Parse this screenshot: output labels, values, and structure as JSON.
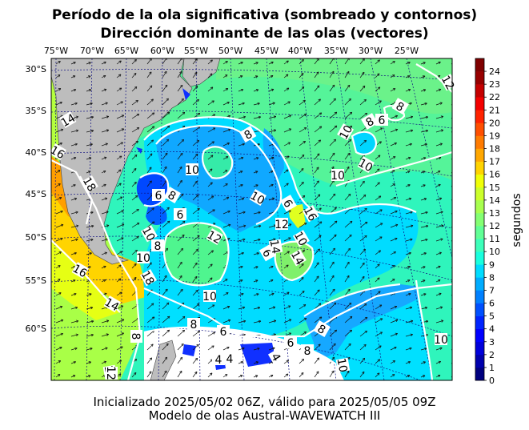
{
  "title_line1": "Período de la ola significativa (sombreado y contornos)",
  "title_line2": "Dirección dominante de las olas (vectores)",
  "footer_line1": "Inicializado 2025/05/02 06Z, válido para 2025/05/05 09Z",
  "footer_line2": "Modelo de olas Austral-WAVEWATCH III",
  "map": {
    "lon_labels": [
      "75°W",
      "70°W",
      "65°W",
      "60°W",
      "55°W",
      "50°W",
      "45°W",
      "40°W",
      "35°W",
      "30°W",
      "25°W"
    ],
    "lat_labels": [
      "30°S",
      "35°S",
      "40°S",
      "45°S",
      "50°S",
      "55°S",
      "60°S"
    ],
    "contour_labels": [
      "14",
      "16",
      "14",
      "18",
      "16",
      "14",
      "12",
      "6",
      "8",
      "10",
      "8",
      "6",
      "10",
      "18",
      "10",
      "8",
      "6",
      "12",
      "8",
      "10",
      "6",
      "12",
      "16",
      "14",
      "10",
      "14",
      "10",
      "10",
      "8",
      "6",
      "8",
      "10",
      "6",
      "4",
      "4",
      "4",
      "6",
      "8",
      "10",
      "8",
      "10",
      "8",
      "12",
      "10"
    ]
  },
  "colorbar": {
    "label": "segundos",
    "ticks": [
      "0",
      "1",
      "2",
      "3",
      "4",
      "5",
      "6",
      "7",
      "8",
      "9",
      "10",
      "11",
      "12",
      "13",
      "14",
      "15",
      "16",
      "17",
      "18",
      "19",
      "20",
      "21",
      "22",
      "23",
      "24"
    ],
    "colors": [
      "#00007f",
      "#0000ad",
      "#0000db",
      "#0000ff",
      "#0024ff",
      "#0050ff",
      "#0080ff",
      "#00acff",
      "#00dcff",
      "#19ffde",
      "#3dffba",
      "#61ff96",
      "#84ff73",
      "#a8ff4f",
      "#ccff2b",
      "#f0ff07",
      "#ffd300",
      "#ffa700",
      "#ff7b00",
      "#ff4f00",
      "#ff2300",
      "#f30000",
      "#c50000",
      "#970000",
      "#7f0000"
    ]
  }
}
